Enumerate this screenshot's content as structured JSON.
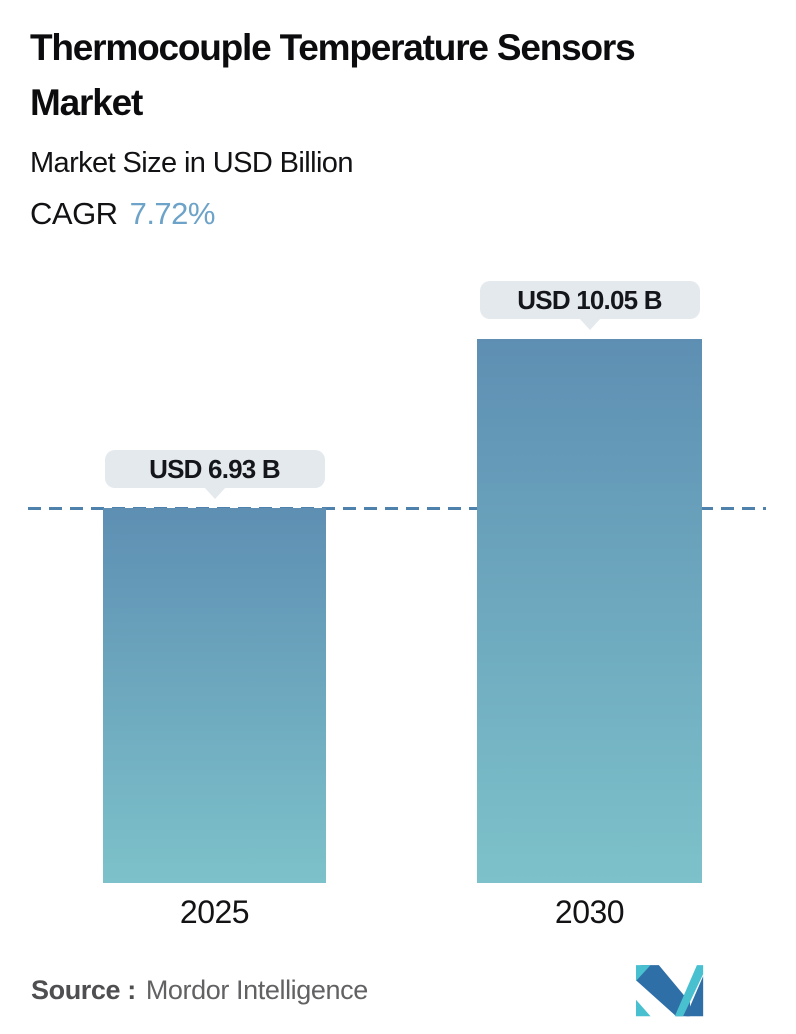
{
  "header": {
    "title": "Thermocouple Temperature Sensors Market",
    "subtitle": "Market Size in USD Billion",
    "cagr_label": "CAGR",
    "cagr_value": "7.72%"
  },
  "chart_data": {
    "type": "bar",
    "categories": [
      "2025",
      "2030"
    ],
    "values": [
      6.93,
      10.05
    ],
    "value_labels": [
      "USD 6.93 B",
      "USD 10.05 B"
    ],
    "title": "Thermocouple Temperature Sensors Market",
    "ylabel": "Market Size in USD Billion",
    "ylim": [
      0,
      11
    ],
    "baseline_at_first_bar": 6.93,
    "grid": "off",
    "legend": "none",
    "colors": {
      "accent": "#6da3c8",
      "bar_gradient_top": "#5e8fb3",
      "bar_gradient_bottom": "#7dc2ca",
      "dashed_line": "#4e81ab",
      "label_bubble_bg": "#e3e9ec",
      "logo_teal": "#49c0d0",
      "logo_blue": "#2f6fa7"
    }
  },
  "footer": {
    "source_label": "Source :",
    "source_value": "Mordor Intelligence"
  }
}
